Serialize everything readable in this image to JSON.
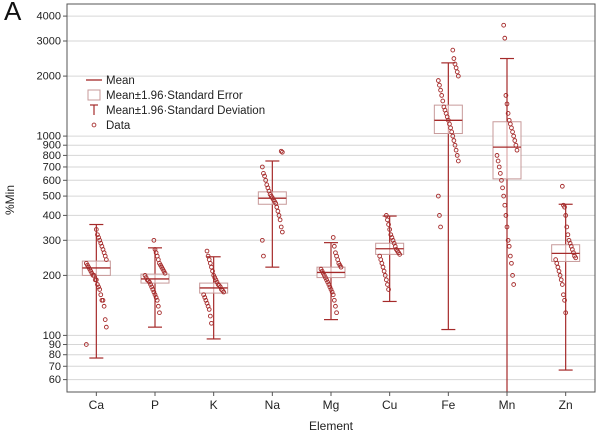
{
  "chart_data": {
    "type": "box",
    "panel_label": "A",
    "xlabel": "Element",
    "ylabel": "%Min",
    "y_scale": "log",
    "ylim": [
      52,
      4600
    ],
    "grid": true,
    "legend_position": "top-left",
    "colors": {
      "series": "#a52a2a",
      "box_edge": "#c79a9a",
      "grid": "#d6d6d6"
    },
    "y_ticks": [
      60,
      70,
      80,
      90,
      100,
      200,
      300,
      400,
      500,
      600,
      700,
      800,
      900,
      1000,
      2000,
      3000,
      4000
    ],
    "legend": [
      {
        "symbol": "line",
        "label": "Mean"
      },
      {
        "symbol": "box",
        "label": "Mean±1.96·Standard Error"
      },
      {
        "symbol": "whisker",
        "label": "Mean±1.96·Standard Deviation"
      },
      {
        "symbol": "point",
        "label": "Data"
      }
    ],
    "categories": [
      "Ca",
      "P",
      "K",
      "Na",
      "Mg",
      "Cu",
      "Fe",
      "Mn",
      "Zn"
    ],
    "stats": [
      {
        "mean": 218,
        "se_low": 200,
        "se_high": 236,
        "sd_low": 77,
        "sd_high": 360
      },
      {
        "mean": 192,
        "se_low": 183,
        "se_high": 203,
        "sd_low": 110,
        "sd_high": 275
      },
      {
        "mean": 173,
        "se_low": 163,
        "se_high": 183,
        "sd_low": 96,
        "sd_high": 248
      },
      {
        "mean": 488,
        "se_low": 455,
        "se_high": 525,
        "sd_low": 220,
        "sd_high": 750
      },
      {
        "mean": 207,
        "se_low": 195,
        "se_high": 220,
        "sd_low": 120,
        "sd_high": 292
      },
      {
        "mean": 272,
        "se_low": 255,
        "se_high": 290,
        "sd_low": 148,
        "sd_high": 397
      },
      {
        "mean": 1200,
        "se_low": 1030,
        "se_high": 1430,
        "sd_low": 107,
        "sd_high": 2330
      },
      {
        "mean": 880,
        "se_low": 610,
        "se_high": 1180,
        "sd_low": 52,
        "sd_high": 2450
      },
      {
        "mean": 258,
        "se_low": 235,
        "se_high": 285,
        "sd_low": 67,
        "sd_high": 455
      }
    ],
    "data_points": [
      [
        90,
        110,
        120,
        140,
        150,
        150,
        160,
        170,
        175,
        180,
        190,
        190,
        200,
        200,
        205,
        210,
        215,
        220,
        225,
        230,
        240,
        250,
        260,
        270,
        280,
        290,
        300,
        310,
        320,
        340
      ],
      [
        130,
        140,
        150,
        155,
        160,
        165,
        170,
        175,
        180,
        185,
        188,
        190,
        195,
        200,
        205,
        210,
        215,
        220,
        225,
        230,
        240,
        250,
        260,
        270,
        300
      ],
      [
        115,
        125,
        135,
        140,
        145,
        150,
        155,
        160,
        165,
        168,
        170,
        175,
        178,
        180,
        185,
        190,
        195,
        200,
        210,
        220,
        230,
        240,
        250,
        265
      ],
      [
        250,
        300,
        330,
        350,
        380,
        400,
        420,
        440,
        460,
        470,
        480,
        490,
        500,
        510,
        530,
        550,
        570,
        600,
        630,
        650,
        700,
        830,
        840
      ],
      [
        130,
        140,
        150,
        160,
        165,
        170,
        175,
        180,
        185,
        190,
        195,
        200,
        205,
        210,
        215,
        220,
        225,
        230,
        240,
        250,
        260,
        280,
        310
      ],
      [
        170,
        180,
        190,
        200,
        210,
        220,
        230,
        240,
        250,
        255,
        260,
        265,
        270,
        280,
        290,
        300,
        310,
        320,
        340,
        360,
        380,
        400
      ],
      [
        350,
        400,
        500,
        750,
        800,
        850,
        900,
        950,
        1000,
        1050,
        1100,
        1150,
        1200,
        1250,
        1300,
        1350,
        1400,
        1500,
        1600,
        1700,
        1800,
        1900,
        2000,
        2100,
        2200,
        2300,
        2450,
        2700
      ],
      [
        180,
        200,
        230,
        250,
        280,
        300,
        350,
        400,
        450,
        500,
        550,
        600,
        650,
        700,
        750,
        800,
        850,
        900,
        950,
        1000,
        1050,
        1100,
        1150,
        1200,
        1300,
        1450,
        1600,
        3100,
        3600
      ],
      [
        130,
        150,
        160,
        180,
        190,
        200,
        210,
        220,
        230,
        240,
        245,
        250,
        260,
        270,
        280,
        290,
        300,
        320,
        350,
        400,
        440,
        450,
        560
      ]
    ]
  }
}
